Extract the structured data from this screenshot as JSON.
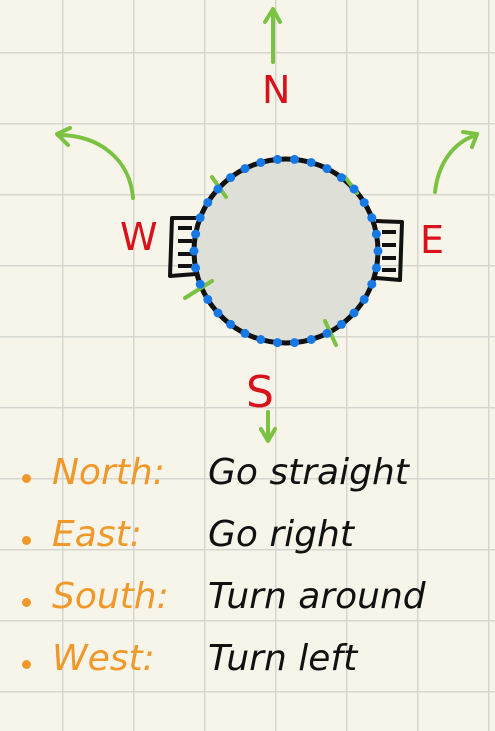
{
  "colors": {
    "direction_label": "#d8111a",
    "arrow": "#7cc242",
    "legend_key": "#f0982a",
    "ring": "#111111",
    "dots": "#1679e6",
    "disc": "#dedfd6"
  },
  "compass": {
    "north": "N",
    "east": "E",
    "south": "S",
    "west": "W"
  },
  "legend": [
    {
      "key": "North",
      "separator": ":",
      "action": "Go straight"
    },
    {
      "key": "East",
      "separator": ":",
      "action": "Go right"
    },
    {
      "key": "South",
      "separator": ":",
      "action": "Turn around"
    },
    {
      "key": "West",
      "separator": ":",
      "action": "Turn left"
    }
  ]
}
